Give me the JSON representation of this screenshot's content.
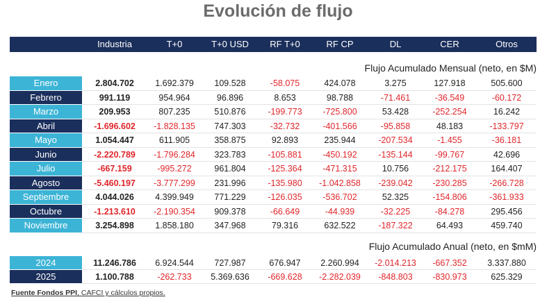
{
  "title": "Evolución de flujo",
  "columns": [
    "Industria",
    "T+0",
    "T+0 USD",
    "RF T+0",
    "RF CP",
    "DL",
    "CER",
    "Otros"
  ],
  "sections": [
    {
      "title": "Flujo Acumulado Mensual (neto, en $M)",
      "rows": [
        {
          "label": "Enero",
          "values": [
            "2.804.702",
            "1.692.379",
            "109.528",
            "-58.075",
            "424.078",
            "3.275",
            "127.918",
            "505.600"
          ]
        },
        {
          "label": "Febrero",
          "values": [
            "991.119",
            "954.964",
            "96.896",
            "8.653",
            "98.788",
            "-71.461",
            "-36.549",
            "-60.172"
          ]
        },
        {
          "label": "Marzo",
          "values": [
            "209.953",
            "807.235",
            "510.876",
            "-199.773",
            "-725.800",
            "53.428",
            "-252.254",
            "16.242"
          ]
        },
        {
          "label": "Abril",
          "values": [
            "-1.696.602",
            "-1.828.135",
            "747.303",
            "-32.732",
            "-401.566",
            "-95.858",
            "48.183",
            "-133.797"
          ]
        },
        {
          "label": "Mayo",
          "values": [
            "1.054.447",
            "611.905",
            "358.875",
            "92.893",
            "235.944",
            "-207.534",
            "-1.455",
            "-36.181"
          ]
        },
        {
          "label": "Junio",
          "values": [
            "-2.220.789",
            "-1.796.284",
            "323.783",
            "-105.881",
            "-450.192",
            "-135.144",
            "-99.767",
            "42.696"
          ]
        },
        {
          "label": "Julio",
          "values": [
            "-667.159",
            "-995.272",
            "961.804",
            "-125.364",
            "-471.315",
            "10.756",
            "-212.175",
            "164.407"
          ]
        },
        {
          "label": "Agosto",
          "values": [
            "-5.460.197",
            "-3.777.299",
            "231.996",
            "-135.980",
            "-1.042.858",
            "-239.042",
            "-230.285",
            "-266.728"
          ]
        },
        {
          "label": "Septiembre",
          "values": [
            "4.044.026",
            "4.399.949",
            "771.229",
            "-126.035",
            "-536.702",
            "52.325",
            "-154.806",
            "-361.933"
          ]
        },
        {
          "label": "Octubre",
          "values": [
            "-1.213.610",
            "-2.190.354",
            "909.378",
            "-66.649",
            "-44.939",
            "-32.225",
            "-84.278",
            "295.456"
          ]
        },
        {
          "label": "Noviembre",
          "values": [
            "3.254.898",
            "1.858.180",
            "347.968",
            "79.316",
            "632.522",
            "-187.322",
            "64.493",
            "459.740"
          ]
        }
      ]
    },
    {
      "title": "Flujo Acumulado Anual (neto, en $mM)",
      "rows": [
        {
          "label": "2024",
          "values": [
            "11.246.786",
            "6.924.544",
            "727.987",
            "676.947",
            "2.260.994",
            "-2.014.213",
            "-667.352",
            "3.337.880"
          ]
        },
        {
          "label": "2025",
          "values": [
            "1.100.788",
            "-262.733",
            "5.369.636",
            "-669.628",
            "-2.282.039",
            "-848.803",
            "-830.973",
            "625.329"
          ]
        }
      ]
    }
  ],
  "footer": {
    "source": "Fuente Fondos PPI",
    "rest": ", CAFCI y cálculos propios."
  }
}
